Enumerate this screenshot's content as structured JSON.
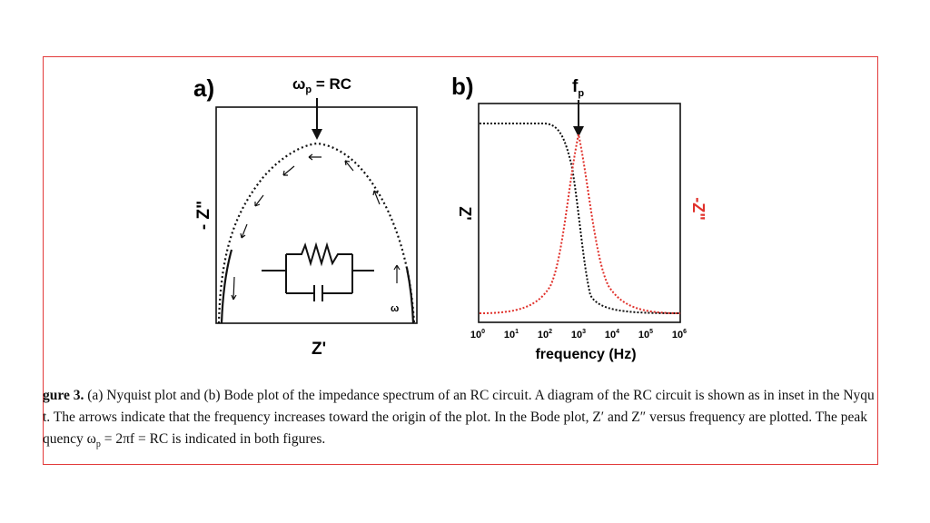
{
  "panel_a": {
    "label": "a)",
    "peak_label": "ω",
    "peak_sub": "p",
    "peak_rhs": " = RC",
    "xlabel": "Z'",
    "ylabel": "- Z\"",
    "omega": "ω"
  },
  "panel_b": {
    "label": "b)",
    "peak_label": "f",
    "peak_sub": "p",
    "xlabel": "frequency (Hz)",
    "ylabel_left": "Z'",
    "ylabel_right": "-Z\"",
    "tick_base": "10",
    "tick_exps": [
      "0",
      "1",
      "2",
      "3",
      "4",
      "5",
      "6"
    ]
  },
  "colors": {
    "border": "#e23a3a",
    "zreal": "#111111",
    "zimag": "#e0302a"
  },
  "caption": {
    "line1_prefix": "gure 3.",
    "line1_text": " (a) Nyquist plot and (b) Bode plot of the impedance spectrum of an RC circuit. A diagram of the RC circuit is shown as in inset in the Nyquist",
    "line2": "t. The arrows indicate that the frequency increases toward the origin of the plot. In the Bode plot, Z′ and Z″ versus frequency are plotted. The peak",
    "line3": "quency ω",
    "line3_sub": "p",
    "line3_rest": " = 2πf = RC is indicated in both figures."
  }
}
